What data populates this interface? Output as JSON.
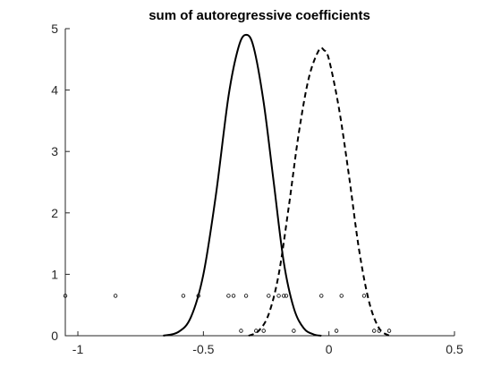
{
  "chart_data": {
    "type": "line",
    "title": "sum of autoregressive coefficients",
    "xlabel": "",
    "ylabel": "",
    "xlim": [
      -1.05,
      0.5
    ],
    "ylim": [
      0,
      5
    ],
    "grid": false,
    "x_ticks": [
      -1,
      -0.5,
      0,
      0.5
    ],
    "x_tick_labels": [
      "-1",
      "-0.5",
      "0",
      "0.5"
    ],
    "y_ticks": [
      0,
      1,
      2,
      3,
      4,
      5
    ],
    "y_tick_labels": [
      "0",
      "1",
      "2",
      "3",
      "4",
      "5"
    ],
    "series": [
      {
        "style": "solid",
        "x": [
          -0.66,
          -0.6,
          -0.55,
          -0.5,
          -0.45,
          -0.4,
          -0.36,
          -0.33,
          -0.3,
          -0.26,
          -0.22,
          -0.18,
          -0.14,
          -0.1,
          -0.06,
          -0.03
        ],
        "y": [
          0.0,
          0.06,
          0.3,
          1.0,
          2.3,
          3.9,
          4.7,
          4.9,
          4.7,
          3.8,
          2.5,
          1.2,
          0.45,
          0.12,
          0.02,
          0.0
        ]
      },
      {
        "style": "dashed",
        "x": [
          -0.32,
          -0.28,
          -0.24,
          -0.2,
          -0.16,
          -0.12,
          -0.08,
          -0.04,
          -0.02,
          0.0,
          0.04,
          0.08,
          0.12,
          0.16,
          0.2,
          0.24
        ],
        "y": [
          0.0,
          0.08,
          0.35,
          1.0,
          2.1,
          3.3,
          4.2,
          4.65,
          4.65,
          4.5,
          3.7,
          2.6,
          1.4,
          0.55,
          0.12,
          0.0
        ]
      }
    ],
    "markers": [
      {
        "x": -1.05,
        "y": 0.65
      },
      {
        "x": -0.85,
        "y": 0.65
      },
      {
        "x": -0.58,
        "y": 0.65
      },
      {
        "x": -0.52,
        "y": 0.65
      },
      {
        "x": -0.4,
        "y": 0.65
      },
      {
        "x": -0.38,
        "y": 0.65
      },
      {
        "x": -0.33,
        "y": 0.65
      },
      {
        "x": -0.24,
        "y": 0.65
      },
      {
        "x": -0.2,
        "y": 0.65
      },
      {
        "x": -0.18,
        "y": 0.65
      },
      {
        "x": -0.17,
        "y": 0.65
      },
      {
        "x": -0.03,
        "y": 0.65
      },
      {
        "x": 0.05,
        "y": 0.65
      },
      {
        "x": 0.14,
        "y": 0.65
      },
      {
        "x": -0.35,
        "y": 0.08
      },
      {
        "x": -0.29,
        "y": 0.08
      },
      {
        "x": -0.26,
        "y": 0.08
      },
      {
        "x": -0.14,
        "y": 0.08
      },
      {
        "x": 0.03,
        "y": 0.08
      },
      {
        "x": 0.18,
        "y": 0.08
      },
      {
        "x": 0.2,
        "y": 0.08
      },
      {
        "x": 0.24,
        "y": 0.08
      }
    ]
  }
}
